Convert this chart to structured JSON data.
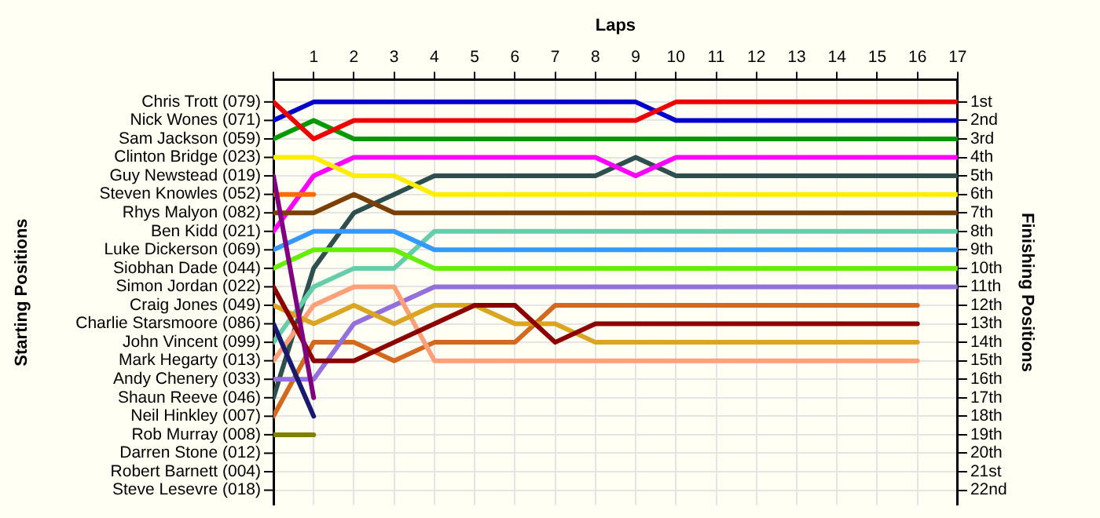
{
  "chart_data": {
    "type": "line",
    "xlabel": "Laps",
    "ylabel": "Finishing Positions",
    "x": [
      0,
      1,
      2,
      3,
      4,
      5,
      6,
      7,
      8,
      9,
      10,
      11,
      12,
      13,
      14,
      15,
      16,
      17
    ],
    "xlim": [
      0,
      17
    ],
    "xticks": [
      {
        "value": 0,
        "label": null
      },
      1,
      2,
      3,
      4,
      5,
      6,
      7,
      8,
      9,
      10,
      11,
      12,
      13,
      14,
      15,
      16,
      17
    ],
    "ylim": [
      22.8,
      -0.2
    ],
    "yticks": [
      {
        "value": 1,
        "label": "1st"
      },
      {
        "value": 2,
        "label": "2nd"
      },
      {
        "value": 3,
        "label": "3rd"
      },
      {
        "value": 4,
        "label": "4th"
      },
      {
        "value": 5,
        "label": "5th"
      },
      {
        "value": 6,
        "label": "6th"
      },
      {
        "value": 7,
        "label": "7th"
      },
      {
        "value": 8,
        "label": "8th"
      },
      {
        "value": 9,
        "label": "9th"
      },
      {
        "value": 10,
        "label": "10th"
      },
      {
        "value": 11,
        "label": "11th"
      },
      {
        "value": 12,
        "label": "12th"
      },
      {
        "value": 13,
        "label": "13th"
      },
      {
        "value": 14,
        "label": "14th"
      },
      {
        "value": 15,
        "label": "15th"
      },
      {
        "value": 16,
        "label": "16th"
      },
      {
        "value": 17,
        "label": "17th"
      },
      {
        "value": 18,
        "label": "18th"
      },
      {
        "value": 19,
        "label": "19th"
      },
      {
        "value": 20,
        "label": "20th"
      },
      {
        "value": 21,
        "label": "21st"
      },
      {
        "value": 22,
        "label": "22nd"
      }
    ],
    "annotations": [
      "Starting Positions",
      "Darren Stone (012)",
      "Robert Barnett (004)",
      "Steve Lesevre (018)"
    ],
    "grid": true,
    "legend": false,
    "marker": "none",
    "line_style": "solid",
    "series": [
      {
        "name": "Chris Trott (079)",
        "color": "#ee0000",
        "values": [
          1,
          3,
          2,
          2,
          2,
          2,
          2,
          2,
          2,
          2,
          1,
          1,
          1,
          1,
          1,
          1,
          1,
          1
        ]
      },
      {
        "name": "Nick Wones (071)",
        "color": "#0000cc",
        "values": [
          2,
          1,
          1,
          1,
          1,
          1,
          1,
          1,
          1,
          1,
          2,
          2,
          2,
          2,
          2,
          2,
          2,
          2
        ]
      },
      {
        "name": "Sam Jackson (059)",
        "color": "#009900",
        "values": [
          3,
          2,
          3,
          3,
          3,
          3,
          3,
          3,
          3,
          3,
          3,
          3,
          3,
          3,
          3,
          3,
          3,
          3
        ]
      },
      {
        "name": "Clinton Bridge (023)",
        "color": "#ffee00",
        "values": [
          4,
          4,
          5,
          5,
          6,
          6,
          6,
          6,
          6,
          6,
          6,
          6,
          6,
          6,
          6,
          6,
          6,
          6
        ]
      },
      {
        "name": "Guy Newstead (019)",
        "color": "#800080",
        "values": [
          5,
          17,
          null,
          null,
          null,
          null,
          null,
          null,
          null,
          null,
          null,
          null,
          null,
          null,
          null,
          null,
          null,
          null
        ]
      },
      {
        "name": "Steven Knowles (052)",
        "color": "#ff6a00",
        "values": [
          6,
          6,
          null,
          null,
          null,
          null,
          null,
          null,
          null,
          null,
          null,
          null,
          null,
          null,
          null,
          null,
          null,
          null
        ]
      },
      {
        "name": "Rhys Malyon (082)",
        "color": "#7b3f00",
        "values": [
          7,
          7,
          6,
          7,
          7,
          7,
          7,
          7,
          7,
          7,
          7,
          7,
          7,
          7,
          7,
          7,
          7,
          7
        ]
      },
      {
        "name": "Ben Kidd (021)",
        "color": "#ff00ff",
        "values": [
          8,
          5,
          4,
          4,
          4,
          4,
          4,
          4,
          4,
          5,
          4,
          4,
          4,
          4,
          4,
          4,
          4,
          4
        ]
      },
      {
        "name": "Luke Dickerson (069)",
        "color": "#3399ff",
        "values": [
          9,
          8,
          8,
          8,
          9,
          9,
          9,
          9,
          9,
          9,
          9,
          9,
          9,
          9,
          9,
          9,
          9,
          9
        ]
      },
      {
        "name": "Siobhan Dade (044)",
        "color": "#66ee00",
        "values": [
          10,
          9,
          9,
          9,
          10,
          10,
          10,
          10,
          10,
          10,
          10,
          10,
          10,
          10,
          10,
          10,
          10,
          10
        ]
      },
      {
        "name": "Simon Jordan (022)",
        "color": "#8b0000",
        "values": [
          11,
          15,
          15,
          14,
          13,
          12,
          12,
          14,
          13,
          13,
          13,
          13,
          13,
          13,
          13,
          13,
          13,
          null
        ]
      },
      {
        "name": "Craig Jones (049)",
        "color": "#daa520",
        "values": [
          12,
          13,
          12,
          13,
          12,
          12,
          13,
          13,
          14,
          14,
          14,
          14,
          14,
          14,
          14,
          14,
          14,
          null
        ]
      },
      {
        "name": "Charlie Starsmoore (086)",
        "color": "#191970",
        "values": [
          13,
          18,
          null,
          null,
          null,
          null,
          null,
          null,
          null,
          null,
          null,
          null,
          null,
          null,
          null,
          null,
          null,
          null
        ]
      },
      {
        "name": "John Vincent (099)",
        "color": "#66cdaa",
        "values": [
          14,
          11,
          10,
          10,
          8,
          8,
          8,
          8,
          8,
          8,
          8,
          8,
          8,
          8,
          8,
          8,
          8,
          8
        ]
      },
      {
        "name": "Mark Hegarty (013)",
        "color": "#ffa07a",
        "values": [
          15,
          12,
          11,
          11,
          15,
          15,
          15,
          15,
          15,
          15,
          15,
          15,
          15,
          15,
          15,
          15,
          15,
          null
        ]
      },
      {
        "name": "Andy Chenery (033)",
        "color": "#9370db",
        "values": [
          16,
          16,
          13,
          12,
          11,
          11,
          11,
          11,
          11,
          11,
          11,
          11,
          11,
          11,
          11,
          11,
          11,
          11
        ]
      },
      {
        "name": "Shaun Reeve (046)",
        "color": "#2f4f4f",
        "values": [
          17,
          10,
          7,
          6,
          5,
          5,
          5,
          5,
          5,
          4,
          5,
          5,
          5,
          5,
          5,
          5,
          5,
          5
        ]
      },
      {
        "name": "Neil Hinkley (007)",
        "color": "#d2691e",
        "values": [
          18,
          14,
          14,
          15,
          14,
          14,
          14,
          12,
          12,
          12,
          12,
          12,
          12,
          12,
          12,
          12,
          12,
          null
        ]
      },
      {
        "name": "Rob Murray (008)",
        "color": "#808000",
        "values": [
          19,
          19,
          null,
          null,
          null,
          null,
          null,
          null,
          null,
          null,
          null,
          null,
          null,
          null,
          null,
          null,
          null,
          null
        ]
      }
    ]
  }
}
